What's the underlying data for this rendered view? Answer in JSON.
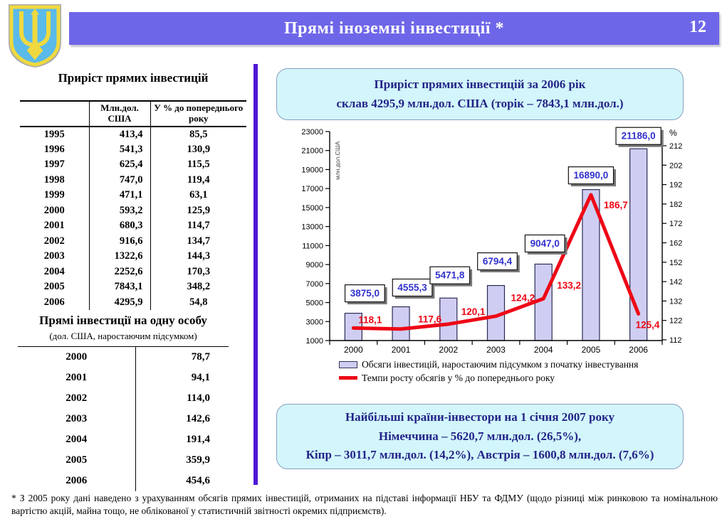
{
  "header": {
    "title": "Прямі іноземні інвестиції *",
    "page_number": "12"
  },
  "emblem": {
    "name": "coat-of-arms-of-ukraine"
  },
  "left_panel": {
    "growth_table": {
      "title": "Приріст прямих інвестицій",
      "col_headers": [
        "Млн.дол. США",
        "У % до попереднього року"
      ],
      "rows": [
        [
          "1995",
          "413,4",
          "85,5"
        ],
        [
          "1996",
          "541,3",
          "130,9"
        ],
        [
          "1997",
          "625,4",
          "115,5"
        ],
        [
          "1998",
          "747,0",
          "119,4"
        ],
        [
          "1999",
          "471,1",
          "63,1"
        ],
        [
          "2000",
          "593,2",
          "125,9"
        ],
        [
          "2001",
          "680,3",
          "114,7"
        ],
        [
          "2002",
          "916,6",
          "134,7"
        ],
        [
          "2003",
          "1322,6",
          "144,3"
        ],
        [
          "2004",
          "2252,6",
          "170,3"
        ],
        [
          "2005",
          "7843,1",
          "348,2"
        ],
        [
          "2006",
          "4295,9",
          "54,8"
        ]
      ]
    },
    "per_capita_table": {
      "title": "Прямі інвестиції на одну особу",
      "subtitle": "(дол. США, наростаючим підсумком)",
      "rows": [
        [
          "2000",
          "78,7"
        ],
        [
          "2001",
          "94,1"
        ],
        [
          "2002",
          "114,0"
        ],
        [
          "2003",
          "142,6"
        ],
        [
          "2004",
          "191,4"
        ],
        [
          "2005",
          "359,9"
        ],
        [
          "2006",
          "454,6"
        ]
      ]
    }
  },
  "right_panel": {
    "top_callout": {
      "line1": "Приріст прямих інвестицій за 2006 рік",
      "line2": "склав 4295,9 млн.дол. США (торік – 7843,1 млн.дол.)"
    },
    "bottom_callout": {
      "line1": "Найбільші країни-інвестори на 1 січня 2007 року",
      "line2": "Німеччина – 5620,7 млн.дол. (26,5%),",
      "line3": "Кіпр – 3011,7 млн.дол. (14,2%), Австрія – 1600,8 млн.дол. (7,6%)"
    }
  },
  "chart_data": {
    "type": "bar+line",
    "categories": [
      "2000",
      "2001",
      "2002",
      "2003",
      "2004",
      "2005",
      "2006"
    ],
    "series": [
      {
        "name": "Обсяги інвестицій, наростаючим підсумком з початку інвестування",
        "type": "bar",
        "axis": "left",
        "values": [
          3875.0,
          4555.3,
          5471.8,
          6794.4,
          9047.0,
          16890.0,
          21186.0
        ],
        "labels": [
          "3875,0",
          "4555,3",
          "5471,8",
          "6794,4",
          "9047,0",
          "16890,0",
          "21186,0"
        ]
      },
      {
        "name": "Темпи росту обсягів у % до попереднього року",
        "type": "line",
        "axis": "right",
        "values": [
          118.1,
          117.6,
          120.1,
          124.2,
          133.2,
          186.7,
          125.4
        ],
        "labels": [
          "118,1",
          "117,6",
          "120,1",
          "124,2",
          "133,2",
          "186,7",
          "125,4"
        ]
      }
    ],
    "left_axis": {
      "label": "млн.дол.США",
      "min": 1000,
      "max": 23000,
      "step": 2000
    },
    "right_axis": {
      "label": "%",
      "min": 112,
      "max": 212,
      "step": 10
    },
    "grid": false,
    "legend_position": "bottom"
  },
  "footnote": "* З 2005 року дані наведено з урахуванням обсягів прямих інвестицій, отриманих на підставі інформації НБУ та ФДМУ (щодо різниці між ринковою та номінальною вартістю акцій, майна тощо, не облікованої у статистичній звітності окремих підприємств).",
  "colors": {
    "header_bar": "#6E66E8",
    "divider": "#4F17D6",
    "callout_bg": "#D2F6FB",
    "callout_border": "#8A9EC0",
    "callout_text": "#232387",
    "bar_fill": "#CFCEF2",
    "bar_border": "#2B2B55",
    "bar_label_text": "#3232CD",
    "line_color": "#EE0716",
    "emblem_field": "#5ABAEA",
    "emblem_gold": "#EFD93F"
  }
}
